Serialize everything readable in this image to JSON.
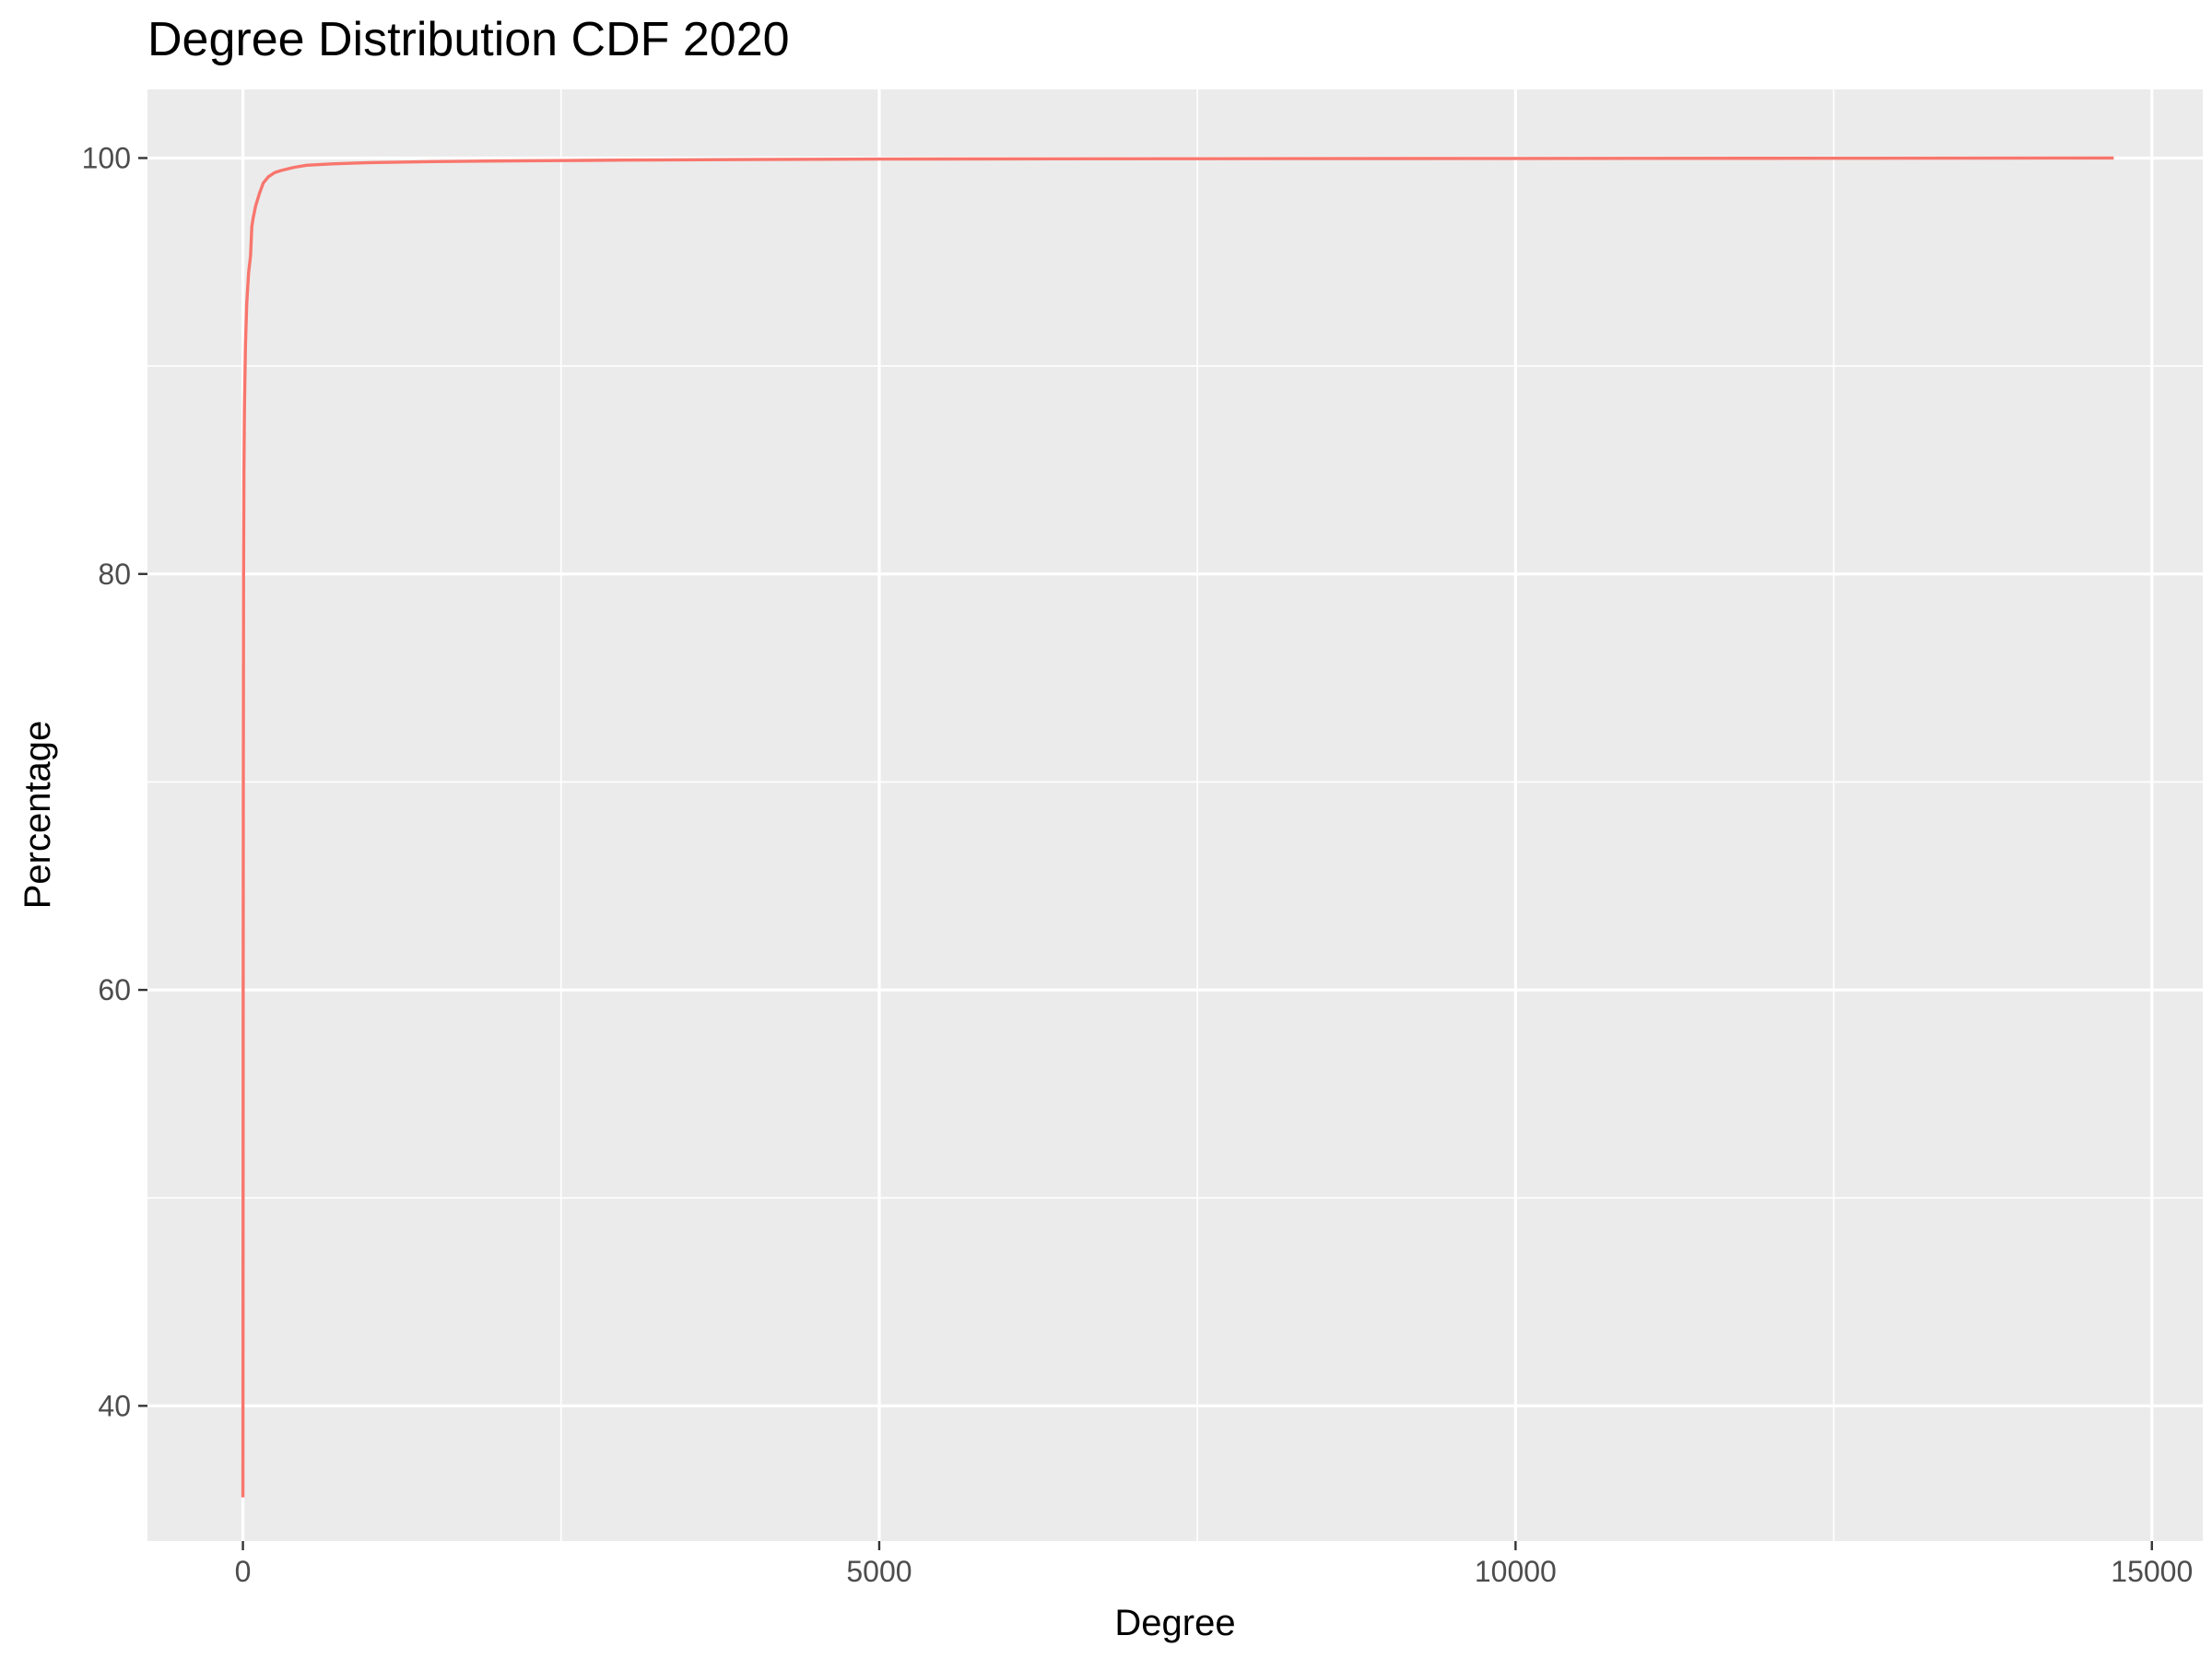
{
  "chart_data": {
    "type": "line",
    "title": "Degree Distribution CDF 2020",
    "xlabel": "Degree",
    "ylabel": "Percentage",
    "xlim": [
      -750,
      15400
    ],
    "ylim": [
      33.5,
      103.3
    ],
    "x_ticks": [
      0,
      5000,
      10000,
      15000
    ],
    "x_tick_labels": [
      "0",
      "5000",
      "10000",
      "15000"
    ],
    "x_minor_ticks": [
      2500,
      7500,
      12500
    ],
    "y_ticks": [
      40,
      60,
      80,
      100
    ],
    "y_tick_labels": [
      "40",
      "60",
      "80",
      "100"
    ],
    "y_minor_ticks": [
      50,
      70,
      90
    ],
    "grid": true,
    "panel_background": "#ebebeb",
    "grid_color": "#ffffff",
    "series": [
      {
        "color": "#f8766d",
        "x": [
          0,
          1,
          2,
          3,
          5,
          8,
          12,
          20,
          30,
          45,
          60,
          70,
          80,
          100,
          130,
          160,
          200,
          250,
          300,
          400,
          500,
          700,
          1000,
          1500,
          2000,
          2500,
          3000,
          4000,
          5000,
          7500,
          10000,
          12500,
          14700
        ],
        "y": [
          35.6,
          45,
          60,
          70,
          80,
          85,
          88,
          91,
          93,
          94.5,
          95.3,
          96.7,
          97.1,
          97.7,
          98.3,
          98.8,
          99.1,
          99.3,
          99.4,
          99.55,
          99.65,
          99.72,
          99.78,
          99.83,
          99.86,
          99.88,
          99.9,
          99.93,
          99.95,
          99.97,
          99.98,
          99.99,
          100
        ]
      }
    ]
  }
}
